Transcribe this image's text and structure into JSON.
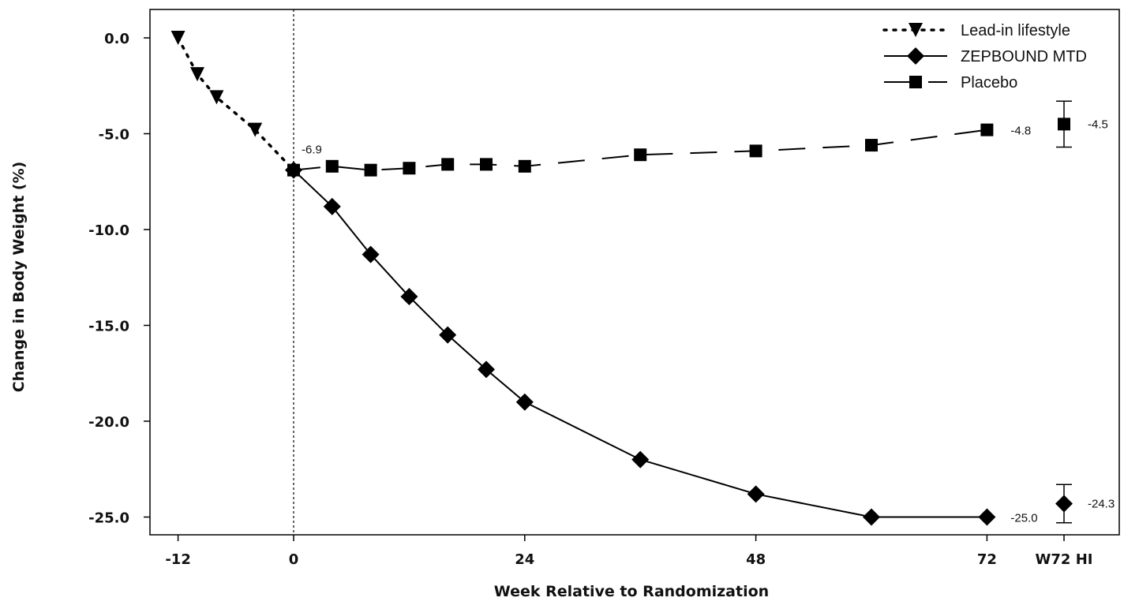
{
  "chart_data": {
    "type": "line",
    "xlabel": "Week Relative to Randomization",
    "ylabel": "Change in Body Weight (%)",
    "xlim": [
      -12,
      80
    ],
    "ylim": [
      -25,
      0
    ],
    "x_ticks": [
      {
        "value": -12,
        "label": "-12"
      },
      {
        "value": 0,
        "label": "0"
      },
      {
        "value": 24,
        "label": "24"
      },
      {
        "value": 48,
        "label": "48"
      },
      {
        "value": 72,
        "label": "72"
      },
      {
        "value": 80,
        "label": "W72 HI"
      }
    ],
    "y_ticks": [
      {
        "value": 0,
        "label": "0.0"
      },
      {
        "value": -5,
        "label": "-5.0"
      },
      {
        "value": -10,
        "label": "-10.0"
      },
      {
        "value": -15,
        "label": "-15.0"
      },
      {
        "value": -20,
        "label": "-20.0"
      },
      {
        "value": -25,
        "label": "-25.0"
      }
    ],
    "reference_line_x": 0,
    "legend_position": "top-right",
    "series": [
      {
        "name": "Lead-in lifestyle",
        "marker": "triangle-down",
        "line_style": "dotted",
        "x": [
          -12,
          -10,
          -8,
          -4,
          0
        ],
        "y": [
          0.0,
          -1.9,
          -3.1,
          -4.8,
          -6.9
        ]
      },
      {
        "name": "ZEPBOUND MTD",
        "marker": "diamond",
        "line_style": "solid",
        "x": [
          0,
          4,
          8,
          12,
          16,
          20,
          24,
          36,
          48,
          60,
          72
        ],
        "y": [
          -6.9,
          -8.8,
          -11.3,
          -13.5,
          -15.5,
          -17.3,
          -19.0,
          -22.0,
          -23.8,
          -25.0,
          -25.0
        ]
      },
      {
        "name": "Placebo",
        "marker": "square",
        "line_style": "dashed",
        "x": [
          0,
          4,
          8,
          12,
          16,
          20,
          24,
          36,
          48,
          60,
          72
        ],
        "y": [
          -6.9,
          -6.7,
          -6.9,
          -6.8,
          -6.6,
          -6.6,
          -6.7,
          -6.1,
          -5.9,
          -5.6,
          -4.8
        ]
      }
    ],
    "hybrid_estimates": [
      {
        "series": "ZEPBOUND MTD",
        "x": 80,
        "y": -24.3,
        "ci": [
          -25.3,
          -23.3
        ],
        "label": "-24.3"
      },
      {
        "series": "Placebo",
        "x": 80,
        "y": -4.5,
        "ci": [
          -5.7,
          -3.3
        ],
        "label": "-4.5"
      }
    ],
    "annotations": [
      {
        "x": 0,
        "y": -6.9,
        "text": "-6.9",
        "position": "above"
      },
      {
        "x": 72,
        "y": -25.0,
        "text": "-25.0",
        "position": "right"
      },
      {
        "x": 72,
        "y": -4.8,
        "text": "-4.8",
        "position": "right"
      }
    ]
  }
}
